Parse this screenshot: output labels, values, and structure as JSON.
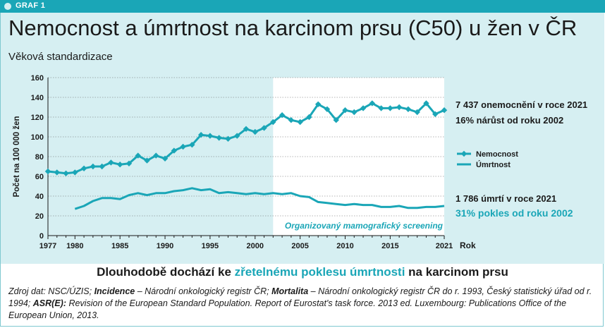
{
  "header": {
    "tag": "GRAF 1"
  },
  "chart_data": {
    "type": "line",
    "title": "Nemocnost a úmrtnost na karcinom prsu (C50) u žen v ČR",
    "subtitle": "Věková standardizace",
    "xlabel": "Rok",
    "ylabel": "Počet na 100 000 žen",
    "xlim": [
      1977,
      2021
    ],
    "ylim": [
      0,
      160
    ],
    "x_ticks": [
      1977,
      1980,
      1985,
      1990,
      1995,
      2000,
      2005,
      2010,
      2015,
      2021
    ],
    "y_ticks": [
      0,
      20,
      40,
      60,
      80,
      100,
      120,
      140,
      160
    ],
    "grid": true,
    "shaded_region": {
      "from": 2002,
      "to": 2021,
      "label": "Organizovaný mamografický screening"
    },
    "legend_position": "right",
    "series": [
      {
        "name": "Nemocnost",
        "color": "#1aa6b7",
        "marker": "diamond",
        "x": [
          1977,
          1978,
          1979,
          1980,
          1981,
          1982,
          1983,
          1984,
          1985,
          1986,
          1987,
          1988,
          1989,
          1990,
          1991,
          1992,
          1993,
          1994,
          1995,
          1996,
          1997,
          1998,
          1999,
          2000,
          2001,
          2002,
          2003,
          2004,
          2005,
          2006,
          2007,
          2008,
          2009,
          2010,
          2011,
          2012,
          2013,
          2014,
          2015,
          2016,
          2017,
          2018,
          2019,
          2020,
          2021
        ],
        "values": [
          65,
          64,
          63,
          64,
          68,
          70,
          70,
          74,
          72,
          73,
          81,
          76,
          81,
          78,
          86,
          90,
          92,
          102,
          101,
          99,
          98,
          101,
          108,
          105,
          109,
          115,
          122,
          117,
          115,
          120,
          133,
          128,
          117,
          127,
          125,
          129,
          134,
          129,
          129,
          130,
          128,
          125,
          134,
          123,
          127
        ]
      },
      {
        "name": "Úmrtnost",
        "color": "#1aa6b7",
        "marker": "none",
        "x": [
          1980,
          1981,
          1982,
          1983,
          1984,
          1985,
          1986,
          1987,
          1988,
          1989,
          1990,
          1991,
          1992,
          1993,
          1994,
          1995,
          1996,
          1997,
          1998,
          1999,
          2000,
          2001,
          2002,
          2003,
          2004,
          2005,
          2006,
          2007,
          2008,
          2009,
          2010,
          2011,
          2012,
          2013,
          2014,
          2015,
          2016,
          2017,
          2018,
          2019,
          2020,
          2021
        ],
        "values": [
          27,
          30,
          35,
          38,
          38,
          37,
          41,
          43,
          41,
          43,
          43,
          45,
          46,
          48,
          46,
          47,
          43,
          44,
          43,
          42,
          43,
          42,
          43,
          42,
          43,
          40,
          39,
          34,
          33,
          32,
          31,
          32,
          31,
          31,
          29,
          29,
          30,
          28,
          28,
          29,
          29,
          30
        ]
      }
    ],
    "annotations": [
      {
        "text": "7 437 onemocnění v roce 2021",
        "color": "#1a1a1a"
      },
      {
        "text": "16% nárůst od roku 2002",
        "color": "#1a1a1a"
      },
      {
        "text": "1 786 úmrtí v roce 2021",
        "color": "#1a1a1a"
      },
      {
        "text": "31% pokles od roku 2002",
        "color": "#1aa6b7"
      }
    ]
  },
  "conclusion": {
    "before": "Dlouhodobě dochází ke ",
    "highlight": "zřetelnému poklesu úmrtnosti",
    "after": " na karcinom prsu"
  },
  "source": {
    "p1": "Zdroj dat: NSC/ÚZIS; ",
    "b1": "Incidence",
    "p2": " – Národní onkologický registr ČR; ",
    "b2": "Mortalita",
    "p3": " – Národní onkologický registr ČR do r. 1993, Český statistický úřad od r. 1994; ",
    "b3": "ASR(E):",
    "p4": " Revision of the European Standard Population. Report of Eurostat's task force. 2013 ed. Luxembourg: Publications Office of the European Union, 2013."
  }
}
